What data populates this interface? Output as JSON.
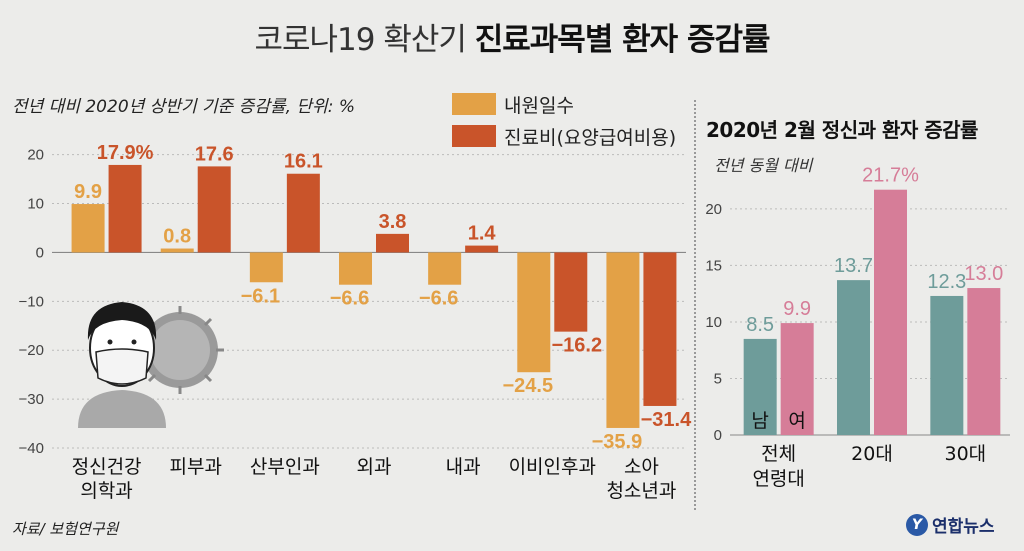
{
  "title": {
    "light": "코로나19 확산기",
    "bold": "진료과목별 환자 증감률"
  },
  "left_subtitle": "전년 대비 2020년 상반기 기준 증감률, 단위: %",
  "legend": [
    {
      "label": "내원일수",
      "color": "#e3a146"
    },
    {
      "label": "진료비(요양급여비용)",
      "color": "#c9542a"
    }
  ],
  "right_title": "2020년 2월 정신과 환자 증감률",
  "right_subtitle": "전년 동월 대비",
  "source": "자료/ 보험연구원",
  "logo": {
    "mark": "Y",
    "text": "연합뉴스"
  },
  "chart_data": [
    {
      "type": "bar",
      "categories": [
        "정신건강\n의학과",
        "피부과",
        "산부인과",
        "외과",
        "내과",
        "이비인후과",
        "소아\n청소년과"
      ],
      "series": [
        {
          "name": "내원일수",
          "color": "#e3a146",
          "values": [
            9.9,
            0.8,
            -6.1,
            -6.6,
            -6.6,
            -24.5,
            -35.9
          ],
          "labels": [
            "9.9",
            "0.8",
            "−6.1",
            "−6.6",
            "−6.6",
            "−24.5",
            "−35.9"
          ]
        },
        {
          "name": "진료비(요양급여비용)",
          "color": "#c9542a",
          "values": [
            17.9,
            17.6,
            16.1,
            3.8,
            1.4,
            -16.2,
            -31.4
          ],
          "labels": [
            "17.9%",
            "17.6",
            "16.1",
            "3.8",
            "1.4",
            "−16.2",
            "−31.4"
          ]
        }
      ],
      "yticks": [
        "20",
        "10",
        "0",
        "−10",
        "−20",
        "−30",
        "−40"
      ],
      "ytick_values": [
        20,
        10,
        0,
        -10,
        -20,
        -30,
        -40
      ],
      "ylim": [
        -40,
        23
      ],
      "grid": true
    },
    {
      "type": "bar",
      "categories": [
        "전체\n연령대",
        "20대",
        "30대"
      ],
      "series": [
        {
          "name": "남",
          "color": "#6e9c9a",
          "values": [
            8.5,
            13.7,
            12.3
          ],
          "labels": [
            "8.5",
            "13.7",
            "12.3"
          ]
        },
        {
          "name": "여",
          "color": "#d67d98",
          "values": [
            9.9,
            21.7,
            13.0
          ],
          "labels": [
            "9.9",
            "21.7%",
            "13.0"
          ]
        }
      ],
      "bar_series_labels": [
        "남",
        "여"
      ],
      "yticks": [
        "20",
        "15",
        "10",
        "5",
        "0"
      ],
      "ytick_values": [
        20,
        15,
        10,
        5,
        0
      ],
      "ylim": [
        0,
        23
      ],
      "grid": true
    }
  ]
}
